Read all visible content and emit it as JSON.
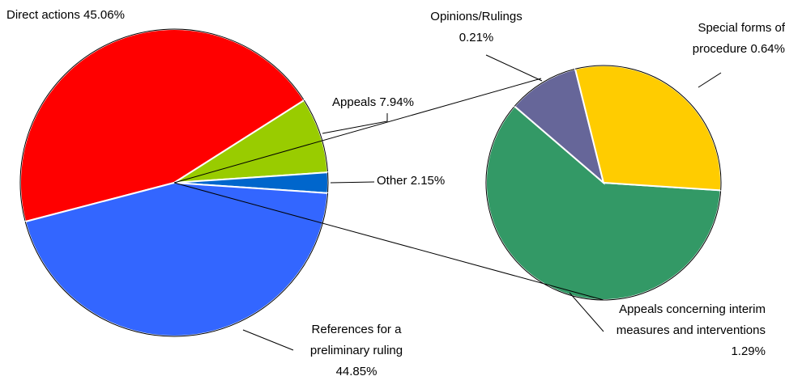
{
  "chart_data": {
    "type": "pie-of-pie",
    "categories": [
      "Direct actions",
      "Appeals",
      "Other",
      "References for a preliminary ruling"
    ],
    "values": [
      45.06,
      7.94,
      2.15,
      44.85
    ],
    "value_labels": [
      "45.06%",
      "7.94%",
      "2.15%",
      "44.85%"
    ],
    "colors": [
      "#ff0000",
      "#99cc00",
      "#0066cc",
      "#3366ff"
    ],
    "secondary": {
      "categories": [
        "Appeals concerning interim measures and interventions",
        "Opinions/Rulings",
        "Special forms of procedure"
      ],
      "values": [
        1.29,
        0.21,
        0.64
      ],
      "value_labels": [
        "1.29%",
        "0.21%",
        "0.64%"
      ],
      "colors": [
        "#339966",
        "#666699",
        "#ffcc00"
      ]
    }
  }
}
